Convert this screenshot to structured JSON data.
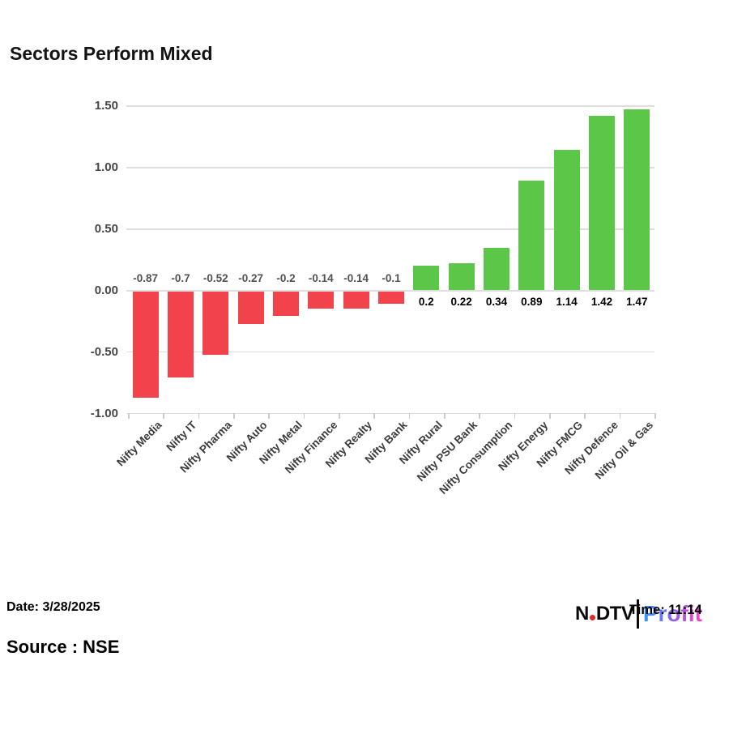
{
  "title": "Sectors Perform Mixed",
  "footer": {
    "date": "Date: 3/28/2025",
    "source": "Source : NSE",
    "time": "Time: 11:14"
  },
  "logo": {
    "ndtv_left": "N",
    "ndtv_right": "DTV",
    "profit": "Profit",
    "dot_color": "#e02a28",
    "profit_gradient": [
      "#2e9cf6",
      "#945cf7",
      "#fb3fc3"
    ]
  },
  "chart_data": {
    "type": "bar",
    "title": "Sectors Perform Mixed",
    "categories": [
      "Nifty Media",
      "Nifty IT",
      "Nifty Pharma",
      "Nifty Auto",
      "Nifty Metal",
      "Nifty Finance",
      "Nifty Realty",
      "Nifty Bank",
      "Nifty Rural",
      "Nifty PSU Bank",
      "Nifty Consumption",
      "Nifty Energy",
      "Nifty FMCG",
      "Nifty Defence",
      "Nifty Oil & Gas"
    ],
    "values": [
      -0.87,
      -0.7,
      -0.52,
      -0.27,
      -0.2,
      -0.14,
      -0.14,
      -0.1,
      0.2,
      0.22,
      0.34,
      0.89,
      1.14,
      1.42,
      1.47
    ],
    "value_labels": [
      "-0.87",
      "-0.7",
      "-0.52",
      "-0.27",
      "-0.2",
      "-0.14",
      "-0.14",
      "-0.1",
      "0.2",
      "0.22",
      "0.34",
      "0.89",
      "1.14",
      "1.42",
      "1.47"
    ],
    "ytick_labels": [
      "1.50",
      "1.00",
      "0.50",
      "0.00",
      "-0.50",
      "-1.00"
    ],
    "ytick_values": [
      1.5,
      1.0,
      0.5,
      0.0,
      -0.5,
      -1.0
    ],
    "ylim": [
      -1.0,
      1.5
    ],
    "grid": true,
    "legend": "none",
    "xlabel": "",
    "ylabel": "",
    "colors": {
      "positive": "#5bc647",
      "negative": "#f2434c",
      "gridline": "#dedede"
    }
  }
}
